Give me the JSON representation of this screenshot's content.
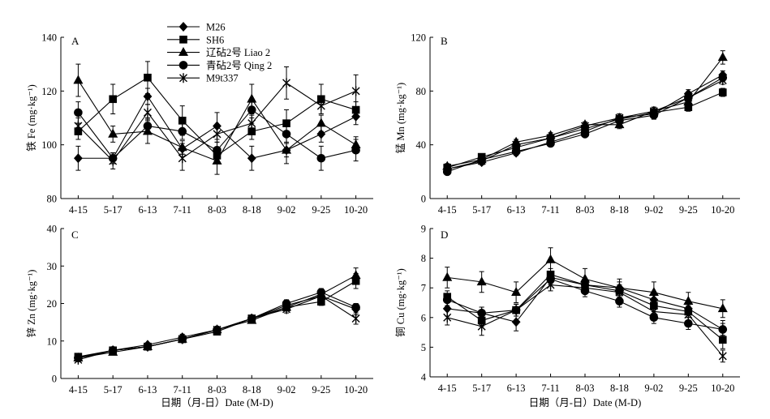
{
  "colors": {
    "line": "#000000",
    "marker": "#000000",
    "background": "#ffffff"
  },
  "legend": {
    "placement": "top-center",
    "entries": [
      {
        "name": "M26",
        "marker": "diamond"
      },
      {
        "name": "SH6",
        "marker": "square"
      },
      {
        "name": "辽砧2号 Liao 2",
        "marker": "triangle"
      },
      {
        "name": "青砧2号 Qing 2",
        "marker": "circle"
      },
      {
        "name": "M9t337",
        "marker": "asterisk"
      }
    ]
  },
  "chart_data": [
    {
      "type": "line",
      "label": "A",
      "xlabel": "",
      "ylabel": "铁 Fe (mg·kg⁻¹)",
      "categories": [
        "4-15",
        "5-17",
        "6-13",
        "7-11",
        "8-03",
        "8-18",
        "9-02",
        "9-25",
        "10-20"
      ],
      "ylim": [
        80,
        140
      ],
      "yticks": [
        80,
        100,
        120,
        140
      ],
      "grid": false,
      "series": [
        {
          "name": "M26",
          "marker": "diamond",
          "values": [
            95,
            95,
            118,
            98.5,
            107,
            95,
            98,
            104,
            110.5
          ],
          "errors": [
            4.5,
            2,
            3,
            2,
            5,
            4.5,
            2.5,
            3,
            3
          ]
        },
        {
          "name": "SH6",
          "marker": "square",
          "values": [
            105,
            117,
            125,
            109,
            96,
            105,
            108,
            117,
            113
          ],
          "errors": [
            3,
            5.5,
            6,
            5.5,
            3,
            3,
            5,
            5.5,
            3
          ]
        },
        {
          "name": "辽砧2号 Liao 2",
          "marker": "triangle",
          "values": [
            124,
            104,
            105,
            99,
            94,
            117,
            98,
            108,
            100
          ],
          "errors": [
            6,
            3,
            4.5,
            2.5,
            5,
            5.5,
            5,
            3,
            3
          ]
        },
        {
          "name": "青砧2号 Qing 2",
          "marker": "circle",
          "values": [
            112,
            95,
            107,
            105,
            98,
            113,
            104,
            95,
            98
          ],
          "errors": [
            4,
            2,
            3,
            3,
            3,
            3,
            3,
            4.5,
            4
          ]
        },
        {
          "name": "M9t337",
          "marker": "asterisk",
          "values": [
            107,
            94,
            112,
            95,
            104,
            108,
            123,
            114.5,
            120
          ],
          "errors": [
            3,
            3,
            3,
            4.5,
            3,
            3,
            6,
            3,
            6
          ]
        }
      ]
    },
    {
      "type": "line",
      "label": "B",
      "xlabel": "",
      "ylabel": "锰 Mn (mg·kg⁻¹)",
      "categories": [
        "4-15",
        "5-17",
        "6-13",
        "7-11",
        "8-03",
        "8-18",
        "9-02",
        "9-25",
        "10-20"
      ],
      "ylim": [
        0,
        120
      ],
      "yticks": [
        0,
        40,
        80,
        120
      ],
      "grid": false,
      "series": [
        {
          "name": "M26",
          "marker": "diamond",
          "values": [
            22,
            27,
            34,
            42,
            50,
            60,
            63,
            78,
            92
          ],
          "errors": [
            2,
            2,
            2,
            2,
            2,
            3,
            3,
            3,
            3
          ]
        },
        {
          "name": "SH6",
          "marker": "square",
          "values": [
            23,
            31,
            38,
            45,
            52,
            59,
            64,
            68,
            79
          ],
          "errors": [
            2,
            2,
            2,
            2,
            2,
            3,
            3,
            3,
            3
          ]
        },
        {
          "name": "辽砧2号 Liao 2",
          "marker": "triangle",
          "values": [
            24,
            29,
            42,
            47,
            55,
            55,
            65,
            72,
            105
          ],
          "errors": [
            2,
            2,
            2,
            2,
            2,
            3,
            3,
            3,
            5
          ]
        },
        {
          "name": "青砧2号 Qing 2",
          "marker": "circle",
          "values": [
            20,
            29,
            35,
            41,
            48,
            58,
            62,
            75,
            90
          ],
          "errors": [
            2,
            2,
            2,
            2,
            2,
            3,
            3,
            3,
            3
          ]
        },
        {
          "name": "M9t337",
          "marker": "asterisk",
          "values": [
            22,
            28,
            40,
            45,
            54,
            60,
            65,
            75,
            88
          ],
          "errors": [
            2,
            2,
            2,
            2,
            2,
            3,
            3,
            3,
            3
          ]
        }
      ]
    },
    {
      "type": "line",
      "label": "C",
      "xlabel": "日期（月-日）Date (M-D)",
      "ylabel": "锌 Zn (mg·kg⁻¹)",
      "categories": [
        "4-15",
        "5-17",
        "6-13",
        "7-11",
        "8-03",
        "8-18",
        "9-02",
        "9-25",
        "10-20"
      ],
      "ylim": [
        0,
        40
      ],
      "yticks": [
        0,
        10,
        20,
        30,
        40
      ],
      "grid": false,
      "series": [
        {
          "name": "M26",
          "marker": "diamond",
          "values": [
            5.5,
            7.5,
            9,
            11,
            13,
            16,
            19.5,
            22,
            18.5
          ],
          "errors": [
            0.5,
            0.5,
            0.5,
            0.8,
            0.8,
            0.8,
            1,
            1,
            1.5
          ]
        },
        {
          "name": "SH6",
          "marker": "square",
          "values": [
            5.8,
            7.5,
            8.5,
            10.5,
            12.5,
            16,
            19,
            20.5,
            26
          ],
          "errors": [
            0.5,
            0.5,
            0.5,
            0.8,
            0.8,
            0.8,
            1,
            1,
            2
          ]
        },
        {
          "name": "辽砧2号 Liao 2",
          "marker": "triangle",
          "values": [
            5.5,
            7,
            8.5,
            10.5,
            13,
            15.5,
            19,
            22.5,
            27.5
          ],
          "errors": [
            0.5,
            0.5,
            0.5,
            0.8,
            0.8,
            0.8,
            1,
            1,
            2
          ]
        },
        {
          "name": "青砧2号 Qing 2",
          "marker": "circle",
          "values": [
            5.5,
            7.5,
            8.5,
            10.5,
            13,
            16,
            20,
            23,
            19
          ],
          "errors": [
            0.5,
            0.5,
            0.5,
            0.8,
            0.8,
            0.8,
            1,
            1,
            1
          ]
        },
        {
          "name": "M9t337",
          "marker": "asterisk",
          "values": [
            5,
            7.5,
            8.5,
            10.5,
            13,
            16,
            18.5,
            22,
            16
          ],
          "errors": [
            0.5,
            0.5,
            0.5,
            0.8,
            0.8,
            0.8,
            1,
            1,
            1.5
          ]
        }
      ]
    },
    {
      "type": "line",
      "label": "D",
      "xlabel": "日期（月-日）Date (M-D)",
      "ylabel": "铜 Cu (mg·kg⁻¹)",
      "categories": [
        "4-15",
        "5-17",
        "6-13",
        "7-11",
        "8-03",
        "8-18",
        "9-02",
        "9-25",
        "10-20"
      ],
      "ylim": [
        4,
        9
      ],
      "yticks": [
        4,
        5,
        6,
        7,
        8,
        9
      ],
      "grid": false,
      "series": [
        {
          "name": "M26",
          "marker": "diamond",
          "values": [
            6.3,
            6.15,
            5.85,
            7.35,
            7.1,
            7.0,
            6.6,
            6.3,
            5.6
          ],
          "errors": [
            0.25,
            0.2,
            0.3,
            0.2,
            0.2,
            0.2,
            0.2,
            0.2,
            0.3
          ]
        },
        {
          "name": "SH6",
          "marker": "square",
          "values": [
            6.7,
            5.9,
            6.25,
            7.45,
            7.1,
            6.9,
            6.4,
            6.2,
            5.25
          ],
          "errors": [
            0.2,
            0.2,
            0.2,
            0.2,
            0.2,
            0.2,
            0.2,
            0.2,
            0.3
          ]
        },
        {
          "name": "辽砧2号 Liao 2",
          "marker": "triangle",
          "values": [
            7.35,
            7.2,
            6.85,
            7.95,
            7.3,
            7.0,
            6.85,
            6.55,
            6.3
          ],
          "errors": [
            0.35,
            0.35,
            0.35,
            0.4,
            0.35,
            0.3,
            0.35,
            0.3,
            0.3
          ]
        },
        {
          "name": "青砧2号 Qing 2",
          "marker": "circle",
          "values": [
            6.6,
            6.15,
            6.25,
            7.3,
            6.9,
            6.55,
            6.0,
            5.8,
            5.6
          ],
          "errors": [
            0.2,
            0.2,
            0.2,
            0.2,
            0.2,
            0.2,
            0.2,
            0.2,
            0.2
          ]
        },
        {
          "name": "M9t337",
          "marker": "asterisk",
          "values": [
            6.0,
            5.7,
            6.25,
            7.1,
            7.0,
            6.85,
            6.2,
            6.1,
            4.7
          ],
          "errors": [
            0.25,
            0.3,
            0.2,
            0.2,
            0.2,
            0.2,
            0.2,
            0.2,
            0.2
          ]
        }
      ]
    }
  ]
}
